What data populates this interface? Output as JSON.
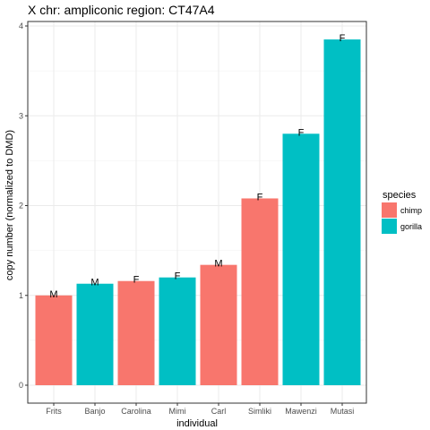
{
  "chart_data": {
    "type": "bar",
    "title": "X chr: ampliconic region: CT47A4",
    "xlabel": "individual",
    "ylabel": "copy number (normalized to DMD)",
    "ylim": [
      0,
      4.05
    ],
    "yticks": [
      0,
      1,
      2,
      3,
      4
    ],
    "grid": true,
    "legend_placement": "right",
    "legend_title": "species",
    "species_colors": {
      "chimp": "#F8766D",
      "gorilla": "#00BFC4"
    },
    "legend": [
      {
        "label": "chimp",
        "color": "#F8766D"
      },
      {
        "label": "gorilla",
        "color": "#00BFC4"
      }
    ],
    "categories": [
      "Frits",
      "Banjo",
      "Carolina",
      "Mimi",
      "Carl",
      "Simliki",
      "Mawenzi",
      "Mutasi"
    ],
    "values": [
      1.0,
      1.13,
      1.16,
      1.2,
      1.34,
      2.08,
      2.8,
      3.85
    ],
    "species": [
      "chimp",
      "gorilla",
      "chimp",
      "gorilla",
      "chimp",
      "chimp",
      "gorilla",
      "gorilla"
    ],
    "bar_labels": [
      "M",
      "M",
      "F",
      "F",
      "M",
      "F",
      "F",
      "F"
    ]
  }
}
